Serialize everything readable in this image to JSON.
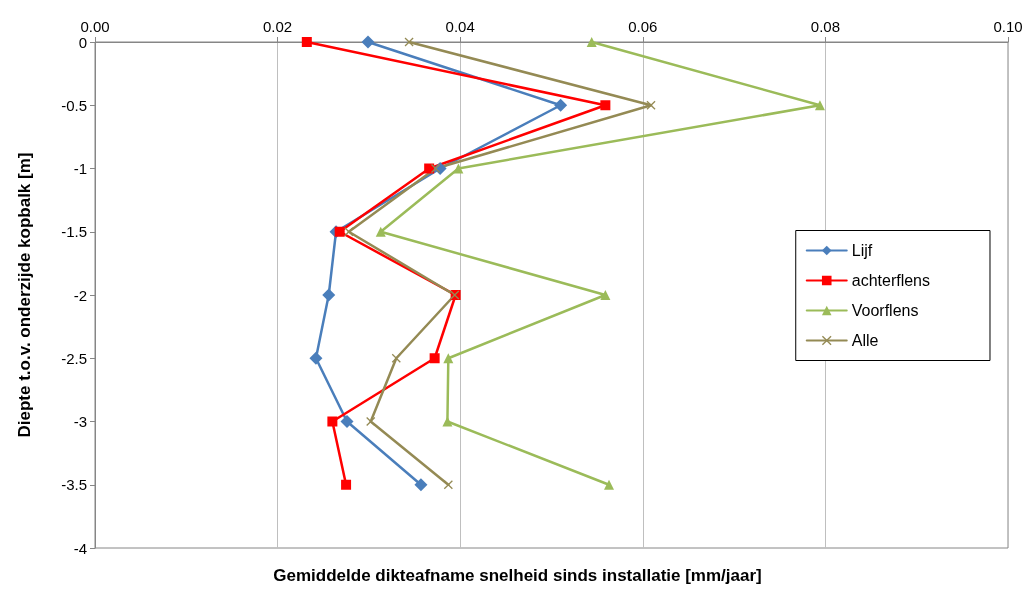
{
  "chart_data": {
    "type": "line",
    "xlabel": "Gemiddelde dikteafname snelheid sinds installatie [mm/jaar]",
    "ylabel": "Diepte t.o.v. onderzijde kopbalk [m]",
    "xlim": [
      0,
      0.1
    ],
    "xticks": [
      {
        "value": 0,
        "label": "0.00"
      },
      {
        "value": 0.02,
        "label": "0.02"
      },
      {
        "value": 0.04,
        "label": "0.04"
      },
      {
        "value": 0.06,
        "label": "0.06"
      },
      {
        "value": 0.08,
        "label": "0.08"
      },
      {
        "value": 0.1,
        "label": "0.10"
      }
    ],
    "ylim": [
      -4,
      0
    ],
    "yticks": [
      0,
      -0.5,
      -1,
      -1.5,
      -2,
      -2.5,
      -3,
      -3.5,
      -4
    ],
    "grid": "x",
    "legend": "right",
    "line_style": "solid",
    "series": [
      {
        "name": "Lijf",
        "color": "#4a7ebb",
        "marker": "diamond",
        "x": [
          0.0299,
          0.051,
          0.0378,
          0.0264,
          0.0256,
          0.0242,
          0.0276,
          0.0357
        ],
        "values": [
          0,
          -0.5,
          -1,
          -1.5,
          -2,
          -2.5,
          -3,
          -3.5
        ]
      },
      {
        "name": "achterflens",
        "color": "#ff0000",
        "marker": "square",
        "x": [
          0.0232,
          0.0559,
          0.0366,
          0.0268,
          0.0395,
          0.0372,
          0.026,
          0.0275
        ],
        "values": [
          0,
          -0.5,
          -1,
          -1.5,
          -2,
          -2.5,
          -3,
          -3.5
        ]
      },
      {
        "name": "Voorflens",
        "color": "#9bbb59",
        "marker": "triangle",
        "x": [
          0.0544,
          0.0794,
          0.0398,
          0.0313,
          0.0559,
          0.0387,
          0.0386,
          0.0563
        ],
        "values": [
          0,
          -0.5,
          -1,
          -1.5,
          -2,
          -2.5,
          -3,
          -3.5
        ]
      },
      {
        "name": "Alle",
        "color": "#948a54",
        "marker": "cross",
        "x": [
          0.0344,
          0.0609,
          0.0373,
          0.0278,
          0.0394,
          0.033,
          0.0302,
          0.0387
        ],
        "values": [
          0,
          -0.5,
          -1,
          -1.5,
          -2,
          -2.5,
          -3,
          -3.5
        ]
      }
    ]
  }
}
